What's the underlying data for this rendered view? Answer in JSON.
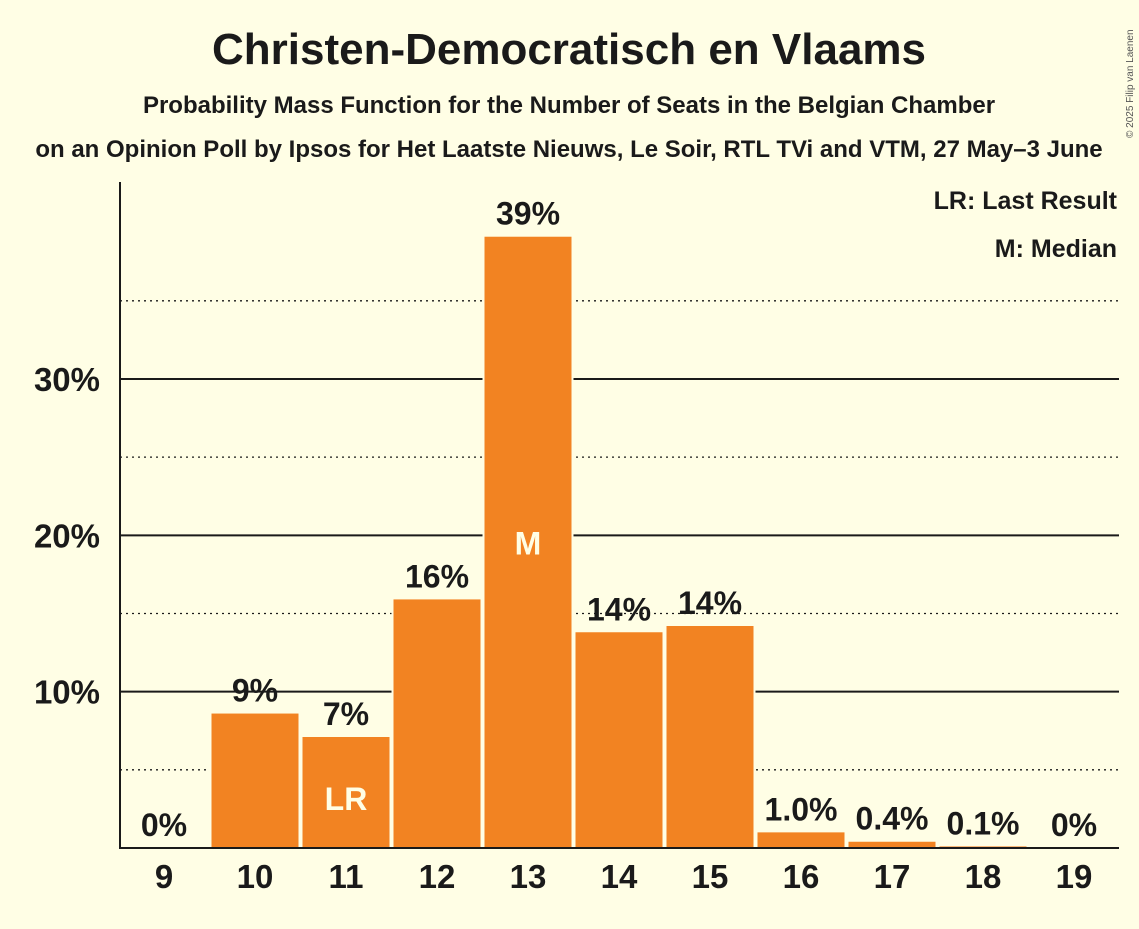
{
  "chart_data": {
    "type": "bar",
    "title": "Christen-Democratisch en Vlaams",
    "subtitle": "Probability Mass Function for the Number of Seats in the Belgian Chamber",
    "source_line": "on an Opinion Poll by Ipsos for Het Laatste Nieuws, Le Soir, RTL TVi and VTM, 27 May–3 June",
    "copyright": "© 2025 Filip van Laenen",
    "categories": [
      "9",
      "10",
      "11",
      "12",
      "13",
      "14",
      "15",
      "16",
      "17",
      "18",
      "19"
    ],
    "values": [
      0,
      8.6,
      7.1,
      15.9,
      39.1,
      13.8,
      14.2,
      1.0,
      0.4,
      0.1,
      0
    ],
    "value_labels": [
      "0%",
      "9%",
      "7%",
      "16%",
      "39%",
      "14%",
      "14%",
      "1.0%",
      "0.4%",
      "0.1%",
      "0%"
    ],
    "bar_markers": [
      {
        "category": "11",
        "text": "LR"
      },
      {
        "category": "13",
        "text": "M"
      }
    ],
    "ylim": [
      0,
      42.6
    ],
    "y_major_ticks": [
      10,
      20,
      30
    ],
    "y_major_labels": [
      "10%",
      "20%",
      "30%"
    ],
    "y_minor_ticks": [
      5,
      15,
      25,
      35
    ],
    "legend": [
      {
        "text": "LR: Last Result"
      },
      {
        "text": "M: Median"
      }
    ],
    "legend_position": "top-right",
    "grid": true,
    "colors": {
      "bar": "#F28322",
      "background": "#FFFEE5",
      "text": "#1a1a1a",
      "marker_text": "#FFFEE5"
    }
  }
}
